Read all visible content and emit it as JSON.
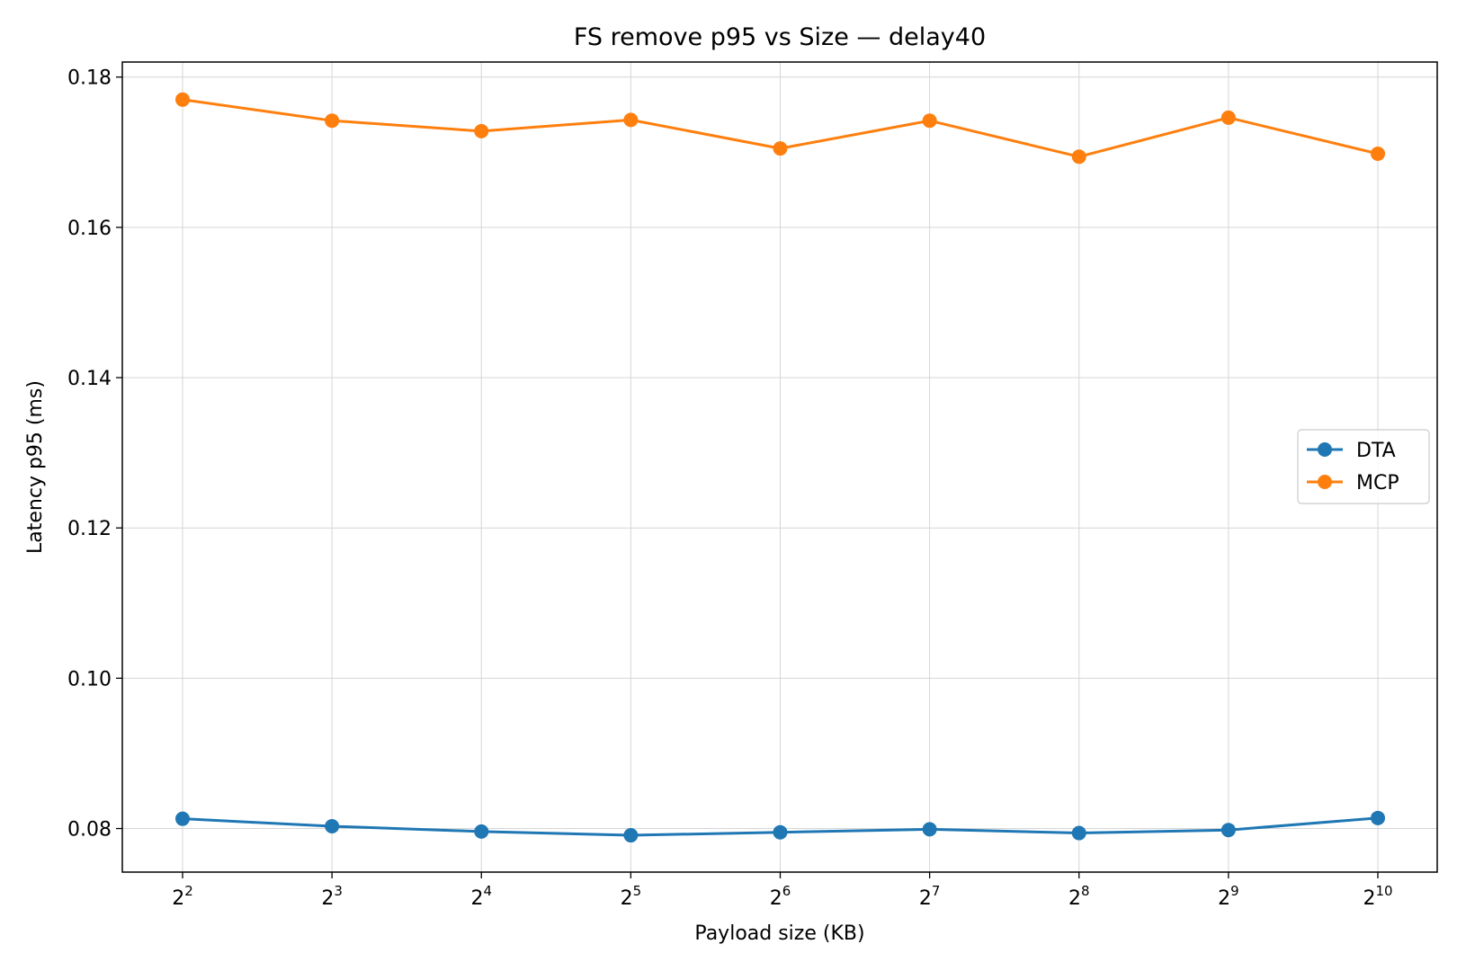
{
  "chart_data": {
    "type": "line",
    "title": "FS remove p95 vs Size — delay40",
    "xlabel": "Payload size (KB)",
    "ylabel": "Latency p95 (ms)",
    "x_scale": "log2",
    "x": [
      4,
      8,
      16,
      32,
      64,
      128,
      256,
      512,
      1024
    ],
    "x_tick_labels": [
      {
        "base": "2",
        "exp": "2"
      },
      {
        "base": "2",
        "exp": "3"
      },
      {
        "base": "2",
        "exp": "4"
      },
      {
        "base": "2",
        "exp": "5"
      },
      {
        "base": "2",
        "exp": "6"
      },
      {
        "base": "2",
        "exp": "7"
      },
      {
        "base": "2",
        "exp": "8"
      },
      {
        "base": "2",
        "exp": "9"
      },
      {
        "base": "2",
        "exp": "10"
      }
    ],
    "ylim": [
      0.0742,
      0.182
    ],
    "y_ticks": [
      0.08,
      0.1,
      0.12,
      0.14,
      0.16,
      0.18
    ],
    "y_tick_labels": [
      "0.08",
      "0.10",
      "0.12",
      "0.14",
      "0.16",
      "0.18"
    ],
    "grid": true,
    "legend_position": "center-right",
    "series": [
      {
        "name": "DTA",
        "color": "#1f77b4",
        "values": [
          0.0813,
          0.0803,
          0.0796,
          0.0791,
          0.0795,
          0.0799,
          0.0794,
          0.0798,
          0.0814
        ]
      },
      {
        "name": "MCP",
        "color": "#ff7f0e",
        "values": [
          0.177,
          0.1742,
          0.1728,
          0.1743,
          0.1705,
          0.1742,
          0.1694,
          0.1746,
          0.1698
        ]
      }
    ]
  }
}
